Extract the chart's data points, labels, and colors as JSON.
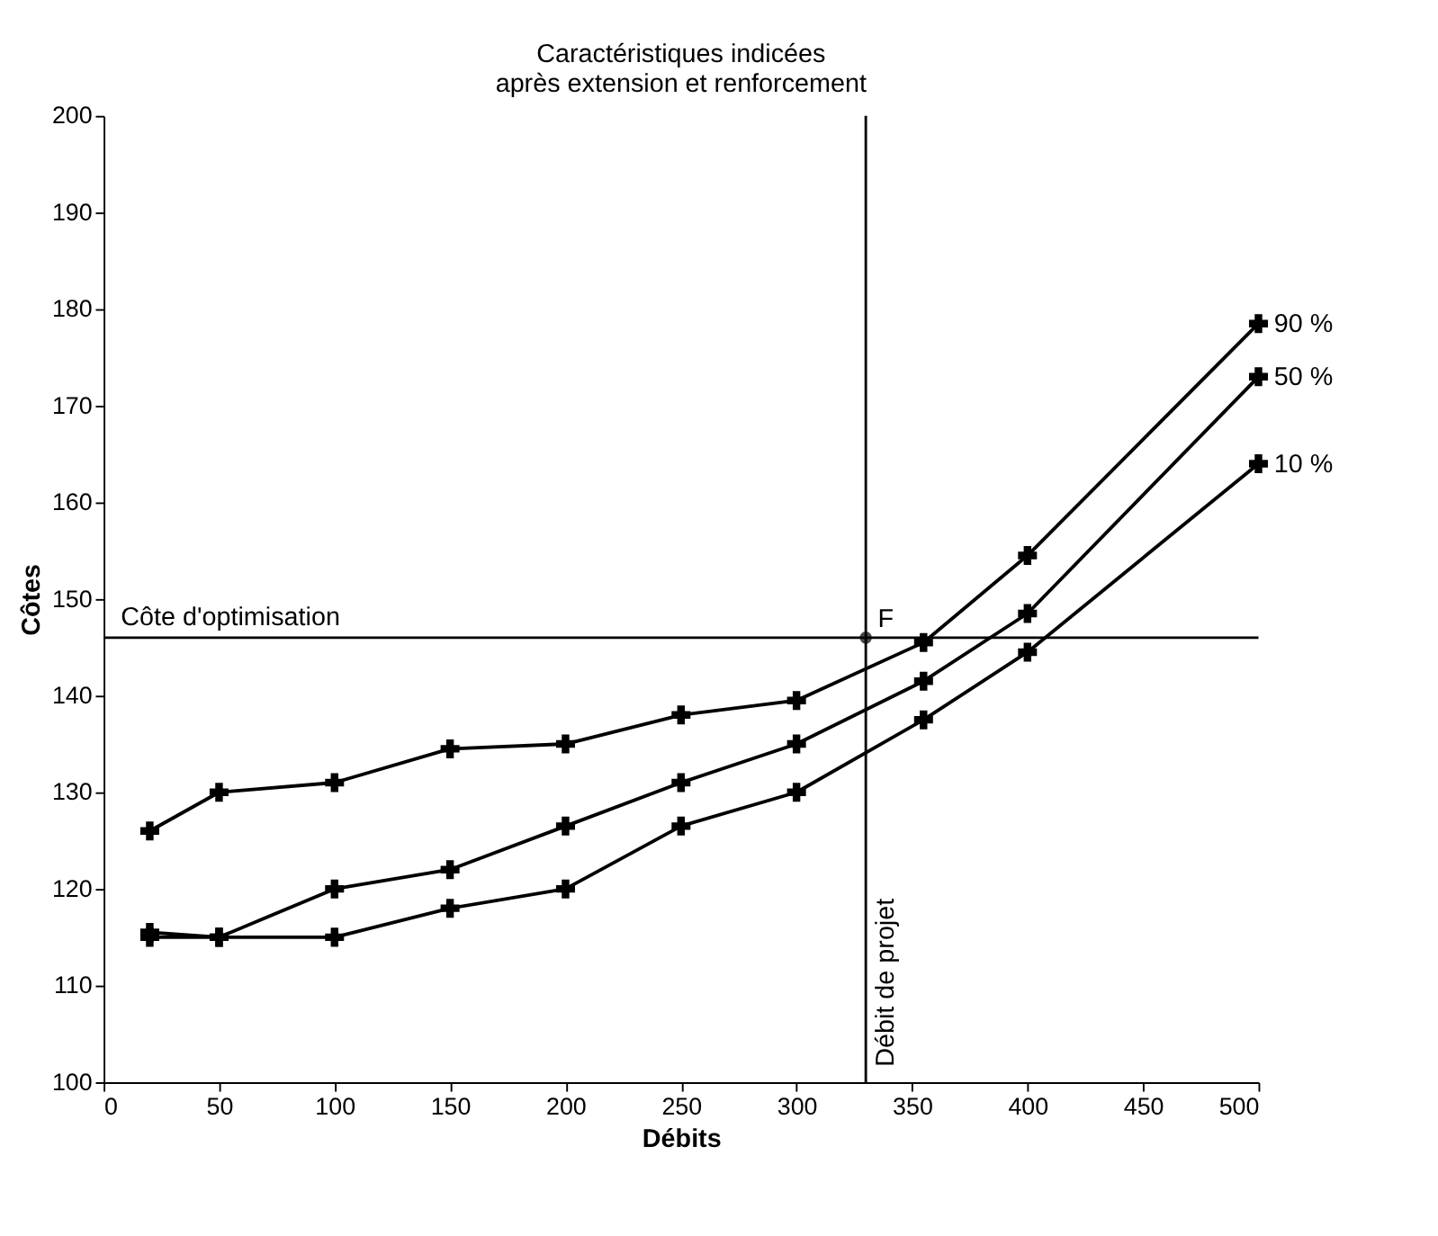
{
  "chart_data": {
    "type": "line",
    "title": "Caractéristiques indicées\naprès extension et renforcement",
    "xlabel": "Débits",
    "ylabel": "Côtes",
    "x": [
      20,
      50,
      100,
      150,
      200,
      250,
      300,
      355,
      400,
      500
    ],
    "series": [
      {
        "name": "90 %",
        "color": "#000000",
        "values": [
          126,
          130,
          131,
          134.5,
          135,
          138,
          139.5,
          145.5,
          154.5,
          178.5
        ]
      },
      {
        "name": "50 %",
        "color": "#000000",
        "values": [
          115.5,
          115,
          120,
          122,
          126.5,
          131,
          135,
          141.5,
          148.5,
          173
        ]
      },
      {
        "name": "10 %",
        "color": "#000000",
        "values": [
          115,
          115,
          115,
          118,
          120,
          126.5,
          130,
          137.5,
          144.5,
          164
        ]
      }
    ],
    "xlim": [
      0,
      500
    ],
    "xticks": [
      0,
      50,
      100,
      150,
      200,
      250,
      300,
      350,
      400,
      450,
      500
    ],
    "ylim": [
      100,
      200
    ],
    "yticks": [
      100,
      110,
      120,
      130,
      140,
      150,
      160,
      170,
      180,
      190,
      200
    ],
    "ref_lines": [
      {
        "axis": "y",
        "value": 146,
        "label": "Côte d'optimisation"
      },
      {
        "axis": "x",
        "value": 330,
        "label": "Débit de projet"
      }
    ],
    "annotations": [
      {
        "text": "F",
        "x": 330,
        "y": 146
      }
    ],
    "marker": "cross",
    "line_style": "solid",
    "grid": false
  }
}
